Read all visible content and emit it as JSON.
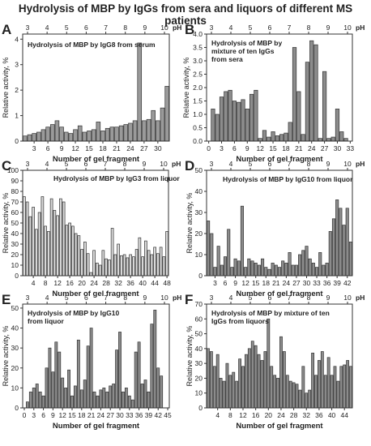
{
  "figure_title": "Hydrolysis of MBP by IgGs  from sera and liquors of different MS patients",
  "chart_data": [
    {
      "panel": "A",
      "type": "bar",
      "title_lines": [
        "Hydrolysis of MBP by IgG8 from   serum"
      ],
      "xlabel": "Number of gel fragment",
      "ylabel": "Relative activity, %",
      "top_axis_label": "pH",
      "x_ticks": [
        3,
        6,
        9,
        12,
        15,
        18,
        21,
        24,
        27,
        30
      ],
      "top_ticks": [
        3,
        4,
        5,
        6,
        7,
        8,
        9,
        10
      ],
      "y_ticks": [
        0,
        1,
        2,
        3,
        4
      ],
      "ylim": [
        0,
        4.2
      ],
      "x": [
        1,
        2,
        3,
        4,
        5,
        6,
        7,
        8,
        9,
        10,
        11,
        12,
        13,
        14,
        15,
        16,
        17,
        18,
        19,
        20,
        21,
        22,
        23,
        24,
        25,
        26,
        27,
        28,
        29,
        30,
        31,
        32
      ],
      "values": [
        0.2,
        0.25,
        0.3,
        0.35,
        0.45,
        0.55,
        0.65,
        0.8,
        0.55,
        0.35,
        0.3,
        0.45,
        0.6,
        0.35,
        0.4,
        0.45,
        0.75,
        0.4,
        0.5,
        0.55,
        0.55,
        0.6,
        0.65,
        0.7,
        0.8,
        3.85,
        0.8,
        0.85,
        1.2,
        0.8,
        1.3,
        2.15
      ],
      "fill": "#9a9a9a"
    },
    {
      "panel": "B",
      "type": "bar",
      "title_lines": [
        "Hydrolysis of MBP by",
        "mixture of ten IgGs",
        "from   sera"
      ],
      "xlabel": "Number of gel fragment",
      "ylabel": "Relative activity, %",
      "top_axis_label": "pH",
      "x_ticks": [
        0,
        3,
        6,
        9,
        12,
        15,
        18,
        21,
        24,
        27,
        30,
        33
      ],
      "top_ticks": [
        3,
        4,
        5,
        6,
        7,
        8,
        9,
        10
      ],
      "y_ticks": [
        0.0,
        0.5,
        1.0,
        1.5,
        2.0,
        2.5,
        3.0,
        3.5,
        4.0
      ],
      "ylim": [
        0,
        4.0
      ],
      "x": [
        1,
        2,
        3,
        4,
        5,
        6,
        7,
        8,
        9,
        10,
        11,
        12,
        13,
        14,
        15,
        16,
        17,
        18,
        19,
        20,
        21,
        22,
        23,
        24,
        25,
        26,
        27,
        28,
        29,
        30,
        31,
        32
      ],
      "values": [
        1.2,
        1.0,
        1.65,
        1.85,
        1.9,
        1.5,
        1.45,
        1.55,
        1.2,
        1.75,
        1.9,
        0.1,
        0.4,
        0.15,
        0.35,
        0.2,
        0.25,
        0.3,
        0.7,
        3.5,
        1.85,
        0.25,
        2.95,
        3.75,
        3.6,
        0.1,
        2.6,
        0.1,
        0.15,
        1.2,
        0.35,
        0.1
      ],
      "fill": "#8c8c8c"
    },
    {
      "panel": "C",
      "type": "bar",
      "title_lines": [
        "Hydrolysis of MBP by IgG3 from liquor"
      ],
      "xlabel": "Number of gel fragment",
      "ylabel": "Relative activity, %",
      "top_axis_label": "pH",
      "x_ticks": [
        4,
        8,
        12,
        16,
        20,
        24,
        28,
        32,
        36,
        40,
        44,
        48
      ],
      "top_ticks": [
        3,
        4,
        5,
        6,
        7,
        8,
        9,
        10
      ],
      "y_ticks": [
        0,
        10,
        20,
        30,
        40,
        50,
        60,
        70,
        80,
        90,
        100
      ],
      "ylim": [
        0,
        100
      ],
      "x": [
        1,
        2,
        3,
        4,
        5,
        6,
        7,
        8,
        9,
        10,
        11,
        12,
        13,
        14,
        15,
        16,
        17,
        18,
        19,
        20,
        21,
        22,
        23,
        24,
        25,
        26,
        27,
        28,
        29,
        30,
        31,
        32,
        33,
        34,
        35,
        36,
        37,
        38,
        39,
        40,
        41,
        42,
        43,
        44,
        45,
        46,
        47,
        48
      ],
      "values": [
        75,
        70,
        56,
        65,
        44,
        60,
        75,
        47,
        42,
        73,
        62,
        57,
        73,
        70,
        48,
        50,
        47,
        40,
        38,
        25,
        32,
        21,
        3,
        24,
        12,
        10,
        24,
        16,
        15,
        45,
        20,
        30,
        19,
        20,
        17,
        20,
        18,
        25,
        36,
        18,
        33,
        24,
        20,
        27,
        21,
        27,
        18,
        42
      ],
      "fill": "#d8d8d8"
    },
    {
      "panel": "D",
      "type": "bar",
      "title_lines": [
        "Hydrolysis of MBP by IgG10 from liquor"
      ],
      "xlabel": "Number of gel fragment",
      "ylabel": "Relative activity, %",
      "top_axis_label": "pH",
      "x_ticks": [
        3,
        6,
        9,
        12,
        15,
        18,
        21,
        24,
        27,
        30,
        33,
        36,
        39,
        42
      ],
      "top_ticks": [
        3,
        4,
        5,
        6,
        7,
        8,
        9,
        10
      ],
      "y_ticks": [
        0,
        10,
        20,
        30,
        40,
        50
      ],
      "ylim": [
        0,
        50
      ],
      "x": [
        1,
        2,
        3,
        4,
        5,
        6,
        7,
        8,
        9,
        10,
        11,
        12,
        13,
        14,
        15,
        16,
        17,
        18,
        19,
        20,
        21,
        22,
        23,
        24,
        25,
        26,
        27,
        28,
        29,
        30,
        31,
        32,
        33,
        34,
        35,
        36,
        37,
        38,
        39,
        40,
        41,
        42,
        43
      ],
      "values": [
        26,
        20,
        4,
        14,
        5,
        9,
        22,
        4,
        8,
        7,
        33,
        4,
        8,
        7,
        6,
        5,
        8,
        4,
        3,
        6,
        5,
        4,
        7,
        6,
        11,
        5,
        5,
        10,
        12,
        14,
        8,
        6,
        4,
        11,
        5,
        6,
        21,
        27,
        36,
        32,
        24,
        32,
        16
      ],
      "fill": "#8c8c8c"
    },
    {
      "panel": "E",
      "type": "bar",
      "title_lines": [
        "Hydrolysis of MBP by IgG10",
        "from liquor"
      ],
      "xlabel": "Number of gel fragment",
      "ylabel": "Relative activity, %",
      "top_axis_label": "pH",
      "x_ticks": [
        0,
        3,
        6,
        9,
        12,
        15,
        18,
        21,
        24,
        27,
        30,
        33,
        36,
        39,
        42,
        45
      ],
      "top_ticks": [
        3,
        4,
        5,
        6,
        7,
        8,
        9,
        10
      ],
      "y_ticks": [
        0,
        10,
        20,
        30,
        40,
        50
      ],
      "ylim": [
        0,
        52
      ],
      "x": [
        1,
        2,
        3,
        4,
        5,
        6,
        7,
        8,
        9,
        10,
        11,
        12,
        13,
        14,
        15,
        16,
        17,
        18,
        19,
        20,
        21,
        22,
        23,
        24,
        25,
        26,
        27,
        28,
        29,
        30,
        31,
        32,
        33,
        34,
        35,
        36,
        37,
        38,
        39,
        40,
        41,
        42,
        43
      ],
      "values": [
        3,
        8,
        10,
        12,
        8,
        6,
        20,
        30,
        18,
        33,
        28,
        15,
        10,
        19,
        6,
        11,
        34,
        9,
        14,
        31,
        40,
        8,
        6,
        9,
        10,
        8,
        11,
        12,
        29,
        38,
        8,
        10,
        6,
        4,
        28,
        33,
        12,
        14,
        8,
        42,
        49,
        20,
        16
      ],
      "fill": "#8c8c8c"
    },
    {
      "panel": "F",
      "type": "bar",
      "title_lines": [
        "Hydrolysis of MBP by mixture of ten",
        "IgGs from liquors"
      ],
      "xlabel": "Number of gel fragment",
      "ylabel": "Relative activity, %",
      "top_axis_label": "pH",
      "x_ticks": [
        4,
        8,
        12,
        16,
        20,
        24,
        28,
        32,
        36,
        40,
        44
      ],
      "top_ticks": [
        3,
        4,
        5,
        6,
        7,
        8,
        9,
        10
      ],
      "y_ticks": [
        0,
        10,
        20,
        30,
        40,
        50,
        60,
        70
      ],
      "ylim": [
        0,
        70
      ],
      "x": [
        1,
        2,
        3,
        4,
        5,
        6,
        7,
        8,
        9,
        10,
        11,
        12,
        13,
        14,
        15,
        16,
        17,
        18,
        19,
        20,
        21,
        22,
        23,
        24,
        25,
        26,
        27,
        28,
        29,
        30,
        31,
        32,
        33,
        34,
        35,
        36,
        37,
        38,
        39,
        40,
        41,
        42,
        43,
        44,
        45,
        46
      ],
      "values": [
        40,
        38,
        28,
        36,
        20,
        18,
        30,
        22,
        24,
        18,
        33,
        28,
        36,
        40,
        45,
        42,
        36,
        32,
        38,
        60,
        28,
        22,
        20,
        48,
        38,
        22,
        18,
        17,
        16,
        12,
        28,
        10,
        12,
        37,
        22,
        32,
        38,
        22,
        34,
        22,
        28,
        18,
        28,
        29,
        32,
        28
      ],
      "fill": "#8c8c8c"
    }
  ]
}
